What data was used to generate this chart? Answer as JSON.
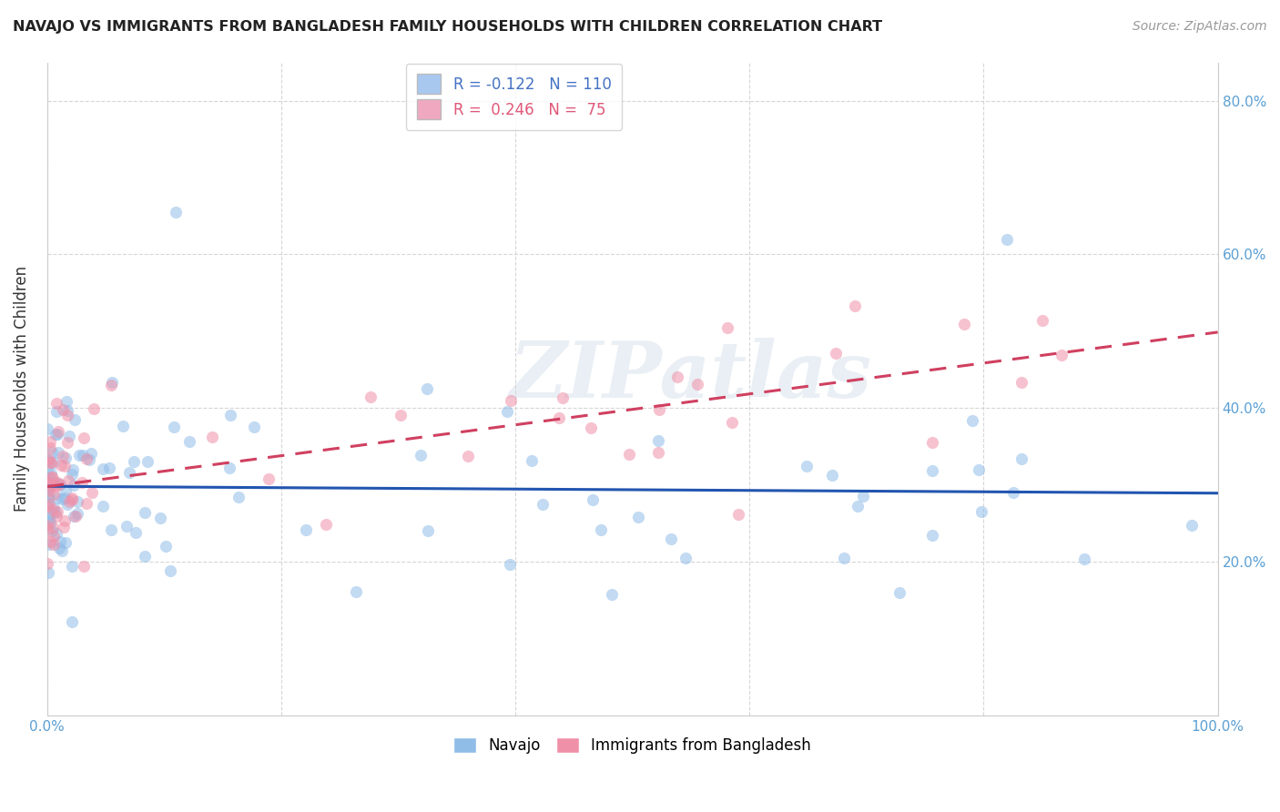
{
  "title": "NAVAJO VS IMMIGRANTS FROM BANGLADESH FAMILY HOUSEHOLDS WITH CHILDREN CORRELATION CHART",
  "source": "Source: ZipAtlas.com",
  "ylabel": "Family Households with Children",
  "xlim": [
    0.0,
    1.0
  ],
  "ylim": [
    0.0,
    0.85
  ],
  "x_ticks": [
    0.0,
    0.2,
    0.4,
    0.6,
    0.8,
    1.0
  ],
  "x_tick_labels": [
    "0.0%",
    "",
    "",
    "",
    "",
    "100.0%"
  ],
  "y_ticks": [
    0.0,
    0.2,
    0.4,
    0.6,
    0.8
  ],
  "y_tick_labels_right": [
    "",
    "20.0%",
    "40.0%",
    "60.0%",
    "80.0%"
  ],
  "legend_label_1": "R = -0.122   N = 110",
  "legend_label_2": "R =  0.246   N =  75",
  "legend_color_1": "#a8c8f0",
  "legend_color_2": "#f0a8c0",
  "legend_text_color_1": "#4472c4",
  "legend_text_color_2": "#e05878",
  "navajo_color": "#90bce8",
  "bangladesh_color": "#f090a8",
  "navajo_line_color": "#2255b0",
  "bangladesh_line_color": "#d04060",
  "watermark_text": "ZIPatlas",
  "background_color": "#ffffff",
  "grid_color": "#cccccc",
  "tick_label_color": "#5a9fd4",
  "title_color": "#222222",
  "source_color": "#999999",
  "ylabel_color": "#333333"
}
